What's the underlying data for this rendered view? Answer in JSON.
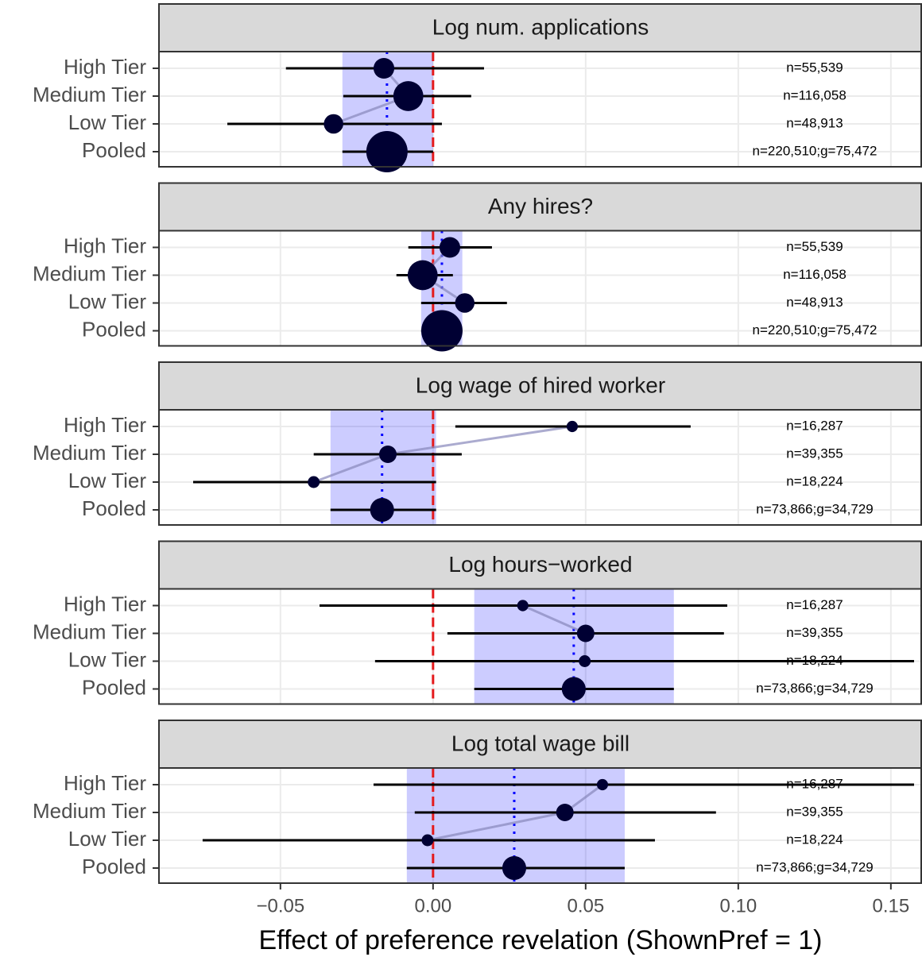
{
  "chart_data": {
    "type": "forest",
    "xlabel": "Effect of preference revelation (ShownPref = 1)",
    "xlim": [
      -0.0898,
      0.1602
    ],
    "xticks": [
      {
        "value": -0.05,
        "label": "−0.05"
      },
      {
        "value": 0,
        "label": "0.00"
      },
      0.05,
      {
        "value": 0.1,
        "label": "0.10"
      },
      0.15
    ],
    "categories": [
      "High Tier",
      "Medium Tier",
      "Low Tier",
      "Pooled"
    ],
    "ref_line": 0,
    "point_color": "#000033",
    "band_color": "#0000ff",
    "panels": [
      {
        "title": "Log num. applications",
        "estimate": [
          -0.0161,
          -0.0081,
          -0.0326,
          -0.0151
        ],
        "ci_low": [
          -0.0482,
          -0.0294,
          -0.0674,
          -0.0297
        ],
        "ci_high": [
          0.0167,
          0.0125,
          0.0029,
          0.0
        ],
        "n": [
          55539,
          116058,
          48913,
          220510
        ],
        "n_labels": [
          "n=55,539",
          "n=116,058",
          "n=48,913",
          "n=220,510;g=75,472"
        ]
      },
      {
        "title": "Any hires?",
        "estimate": [
          0.0055,
          -0.0034,
          0.0104,
          0.0029
        ],
        "ci_low": [
          -0.0081,
          -0.012,
          -0.0039,
          -0.0039
        ],
        "ci_high": [
          0.0193,
          0.0065,
          0.0242,
          0.0096
        ],
        "n": [
          55539,
          116058,
          48913,
          220510
        ],
        "n_labels": [
          "n=55,539",
          "n=116,058",
          "n=48,913",
          "n=220,510;g=75,472"
        ]
      },
      {
        "title": "Log wage of hired worker",
        "estimate": [
          0.0456,
          -0.0148,
          -0.0391,
          -0.0167
        ],
        "ci_low": [
          0.0073,
          -0.0391,
          -0.0786,
          -0.0336
        ],
        "ci_high": [
          0.0844,
          0.0094,
          0.001,
          0.001
        ],
        "n": [
          16287,
          39355,
          18224,
          73866
        ],
        "n_labels": [
          "n=16,287",
          "n=39,355",
          "n=18,224",
          "n=73,866;g=34,729"
        ]
      },
      {
        "title": "Log hours−worked",
        "estimate": [
          0.0294,
          0.05,
          0.0497,
          0.0461
        ],
        "ci_low": [
          -0.0372,
          0.0047,
          -0.019,
          0.0135
        ],
        "ci_high": [
          0.0964,
          0.0953,
          0.1576,
          0.0789
        ],
        "n": [
          16287,
          39355,
          18224,
          73866
        ],
        "n_labels": [
          "n=16,287",
          "n=39,355",
          "n=18,224",
          "n=73,866;g=34,729"
        ]
      },
      {
        "title": "Log total wage bill",
        "estimate": [
          0.0555,
          0.0432,
          -0.0018,
          0.0266
        ],
        "ci_low": [
          -0.0195,
          -0.006,
          -0.0755,
          -0.0086
        ],
        "ci_high": [
          0.1576,
          0.0927,
          0.0727,
          0.0628
        ],
        "n": [
          16287,
          39355,
          18224,
          73866
        ],
        "n_labels": [
          "n=16,287",
          "n=39,355",
          "n=18,224",
          "n=73,866;g=34,729"
        ]
      }
    ]
  }
}
